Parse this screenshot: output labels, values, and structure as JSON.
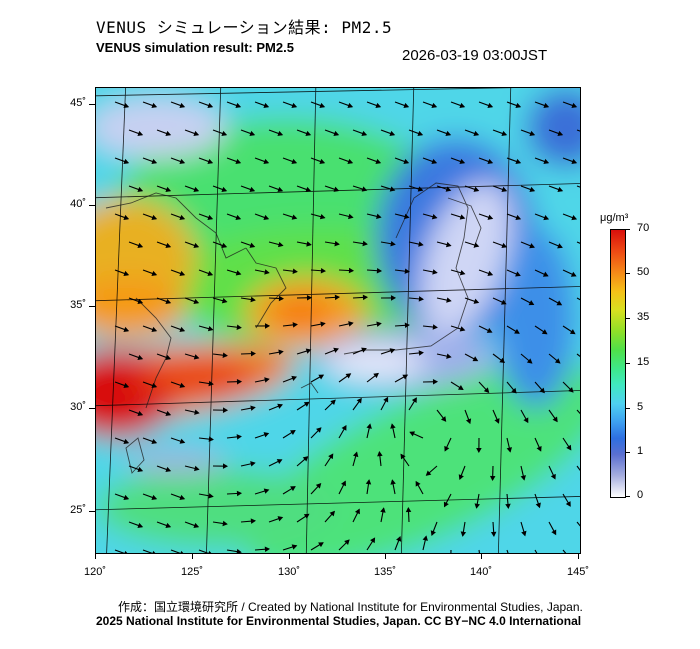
{
  "title_jp": "VENUS シミュレーション結果: PM2.5",
  "title_en": "VENUS simulation result: PM2.5",
  "timestamp": "2026-03-19 03:00JST",
  "latitude_labels": [
    "45˚",
    "40˚",
    "35˚",
    "30˚",
    "25˚"
  ],
  "longitude_labels": [
    "120˚",
    "125˚",
    "130˚",
    "135˚",
    "140˚",
    "145˚"
  ],
  "colorbar": {
    "unit": "μg/m³",
    "labels": [
      "70",
      "50",
      "35",
      "15",
      "5",
      "1",
      "0"
    ],
    "colors": [
      "#d8100c",
      "#f58a18",
      "#d8e020",
      "#4fe04a",
      "#4fd1f0",
      "#2e6fe0",
      "#ffffff"
    ]
  },
  "credit": {
    "line1": "作成：国立環境研究所 / Created by National Institute for Environmental Studies, Japan.",
    "line2": "2025 National Institute for Environmental Studies, Japan. CC BY−NC 4.0 International"
  },
  "map": {
    "lon_range": [
      120,
      145
    ],
    "lat_range": [
      23,
      46
    ],
    "concentration_regions": [
      {
        "name": "high-china-south",
        "color": "#d8100c"
      },
      {
        "name": "high-yellow-sea",
        "color": "#f57a18"
      },
      {
        "name": "low-japan",
        "color": "#ffffff"
      },
      {
        "name": "low-north",
        "color": "#cfd6f5"
      }
    ]
  }
}
